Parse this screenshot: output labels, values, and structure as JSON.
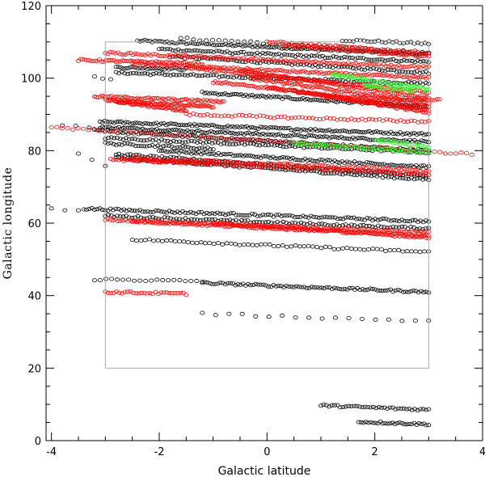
{
  "chart_data": {
    "type": "scatter",
    "xlabel": "Galactic latitude",
    "ylabel": "Galactic longitude",
    "xlim": [
      -4.1,
      4
    ],
    "ylim": [
      0,
      120
    ],
    "x_ticks": [
      -4,
      -2,
      0,
      2,
      4
    ],
    "y_ticks": [
      0,
      20,
      40,
      60,
      80,
      100,
      120
    ],
    "x_minor_step": 0.5,
    "y_minor_step": 5,
    "region": {
      "x": [
        -3,
        3
      ],
      "y": [
        20,
        110
      ],
      "color": "#aaaaaa"
    },
    "colors": {
      "black": "#000000",
      "red": "#ff0000",
      "green": "#33ff33",
      "axis": "#000000"
    },
    "marker": "open-circle",
    "series": [
      {
        "color": "black",
        "tracks": [
          {
            "x": [
              -2.4,
              3.0
            ],
            "y": [
              110.3,
              106.5
            ],
            "n": 120
          },
          {
            "x": [
              -1.6,
              3.0
            ],
            "y": [
              111.0,
              107.0
            ],
            "n": 40
          },
          {
            "x": [
              1.4,
              3.0
            ],
            "y": [
              110.5,
              109.5
            ],
            "n": 25
          },
          {
            "x": [
              -2.0,
              3.0
            ],
            "y": [
              108.0,
              104.5
            ],
            "n": 100
          },
          {
            "x": [
              -1.8,
              3.0
            ],
            "y": [
              106.0,
              101.5
            ],
            "n": 90
          },
          {
            "x": [
              -2.8,
              -1.5
            ],
            "y": [
              103.0,
              102.5
            ],
            "n": 30
          },
          {
            "x": [
              -2.8,
              3.0
            ],
            "y": [
              101.5,
              98.5
            ],
            "n": 110
          },
          {
            "x": [
              -3.2,
              -2.9
            ],
            "y": [
              100.5,
              99.5
            ],
            "n": 3
          },
          {
            "x": [
              -1.2,
              3.0
            ],
            "y": [
              96.0,
              92.0
            ],
            "n": 100
          },
          {
            "x": [
              -3.1,
              3.0
            ],
            "y": [
              88.0,
              84.5
            ],
            "n": 140
          },
          {
            "x": [
              -3.1,
              3.0
            ],
            "y": [
              86.5,
              82.5
            ],
            "n": 140
          },
          {
            "x": [
              -3.2,
              3.0
            ],
            "y": [
              85.5,
              80.0
            ],
            "n": 130
          },
          {
            "x": [
              -3.0,
              3.0
            ],
            "y": [
              83.5,
              79.5
            ],
            "n": 110
          },
          {
            "x": [
              -3.0,
              -1.0
            ],
            "y": [
              82.0,
              80.5
            ],
            "n": 40
          },
          {
            "x": [
              -2.0,
              3.0
            ],
            "y": [
              80.0,
              75.5
            ],
            "n": 110
          },
          {
            "x": [
              -2.8,
              3.0
            ],
            "y": [
              79.0,
              73.0
            ],
            "n": 110
          },
          {
            "x": [
              -2.8,
              3.0
            ],
            "y": [
              78.0,
              72.0
            ],
            "n": 110
          },
          {
            "x": [
              -3.8,
              -3.3
            ],
            "y": [
              87.0,
              86.5
            ],
            "n": 3
          },
          {
            "x": [
              -3.5,
              -3.0
            ],
            "y": [
              79.0,
              76.0
            ],
            "n": 3
          },
          {
            "x": [
              -3.4,
              3.0
            ],
            "y": [
              64.0,
              60.5
            ],
            "n": 130
          },
          {
            "x": [
              -3.0,
              3.0
            ],
            "y": [
              62.0,
              58.5
            ],
            "n": 110
          },
          {
            "x": [
              -4.0,
              -3.5
            ],
            "y": [
              64.0,
              63.5
            ],
            "n": 3
          },
          {
            "x": [
              -2.5,
              3.0
            ],
            "y": [
              55.5,
              52.0
            ],
            "n": 70
          },
          {
            "x": [
              -3.2,
              -1.2
            ],
            "y": [
              44.5,
              44.0
            ],
            "n": 20
          },
          {
            "x": [
              -1.2,
              3.0
            ],
            "y": [
              43.5,
              41.0
            ],
            "n": 90
          },
          {
            "x": [
              -1.2,
              3.0
            ],
            "y": [
              35.0,
              33.0
            ],
            "n": 18
          },
          {
            "x": [
              1.0,
              3.0
            ],
            "y": [
              9.7,
              8.5
            ],
            "n": 40
          },
          {
            "x": [
              1.7,
              3.0
            ],
            "y": [
              5.2,
              4.5
            ],
            "n": 30
          }
        ]
      },
      {
        "color": "red",
        "tracks": [
          {
            "x": [
              0.0,
              3.0
            ],
            "y": [
              110.0,
              107.0
            ],
            "n": 60
          },
          {
            "x": [
              0.3,
              3.0
            ],
            "y": [
              109.0,
              106.0
            ],
            "n": 60
          },
          {
            "x": [
              -3.0,
              3.0
            ],
            "y": [
              107.0,
              103.0
            ],
            "n": 130
          },
          {
            "x": [
              -3.5,
              -1.2
            ],
            "y": [
              105.0,
              104.0
            ],
            "n": 60
          },
          {
            "x": [
              -2.5,
              3.0
            ],
            "y": [
              104.0,
              100.0
            ],
            "n": 130
          },
          {
            "x": [
              -1.5,
              3.0
            ],
            "y": [
              103.0,
              96.0
            ],
            "n": 120
          },
          {
            "x": [
              -0.5,
              3.0
            ],
            "y": [
              102.0,
              94.5
            ],
            "n": 100
          },
          {
            "x": [
              -0.3,
              3.0
            ],
            "y": [
              100.0,
              93.0
            ],
            "n": 100
          },
          {
            "x": [
              -1.0,
              3.0
            ],
            "y": [
              99.0,
              92.0
            ],
            "n": 100
          },
          {
            "x": [
              0.0,
              3.0
            ],
            "y": [
              97.5,
              91.0
            ],
            "n": 80
          },
          {
            "x": [
              0.5,
              3.0
            ],
            "y": [
              96.5,
              90.5
            ],
            "n": 70
          },
          {
            "x": [
              1.0,
              3.2
            ],
            "y": [
              95.0,
              94.0
            ],
            "n": 50
          },
          {
            "x": [
              -3.2,
              -0.8
            ],
            "y": [
              95.0,
              93.5
            ],
            "n": 70
          },
          {
            "x": [
              -3.0,
              -1.0
            ],
            "y": [
              94.0,
              92.0
            ],
            "n": 70
          },
          {
            "x": [
              -2.8,
              -1.5
            ],
            "y": [
              93.5,
              91.0
            ],
            "n": 50
          },
          {
            "x": [
              -1.5,
              3.0
            ],
            "y": [
              90.0,
              88.0
            ],
            "n": 70
          },
          {
            "x": [
              -4.0,
              3.8
            ],
            "y": [
              86.5,
              79.0
            ],
            "n": 80
          },
          {
            "x": [
              -2.5,
              3.0
            ],
            "y": [
              78.0,
              74.5
            ],
            "n": 110
          },
          {
            "x": [
              -2.7,
              3.0
            ],
            "y": [
              77.5,
              73.5
            ],
            "n": 110
          },
          {
            "x": [
              -2.9,
              -1.0
            ],
            "y": [
              77.5,
              76.5
            ],
            "n": 40
          },
          {
            "x": [
              -3.0,
              3.0
            ],
            "y": [
              61.0,
              57.5
            ],
            "n": 130
          },
          {
            "x": [
              -2.5,
              3.0
            ],
            "y": [
              60.5,
              56.5
            ],
            "n": 120
          },
          {
            "x": [
              -1.0,
              3.0
            ],
            "y": [
              60.0,
              56.0
            ],
            "n": 90
          },
          {
            "x": [
              -3.0,
              -1.5
            ],
            "y": [
              41.0,
              40.5
            ],
            "n": 30
          }
        ]
      },
      {
        "color": "green",
        "tracks": [
          {
            "x": [
              1.2,
              3.0
            ],
            "y": [
              101.0,
              97.0
            ],
            "n": 60
          },
          {
            "x": [
              1.8,
              2.7
            ],
            "y": [
              98.0,
              96.5
            ],
            "n": 30
          },
          {
            "x": [
              0.5,
              3.0
            ],
            "y": [
              82.0,
              79.5
            ],
            "n": 70
          },
          {
            "x": [
              2.0,
              3.0
            ],
            "y": [
              83.0,
              81.0
            ],
            "n": 30
          }
        ]
      }
    ]
  }
}
